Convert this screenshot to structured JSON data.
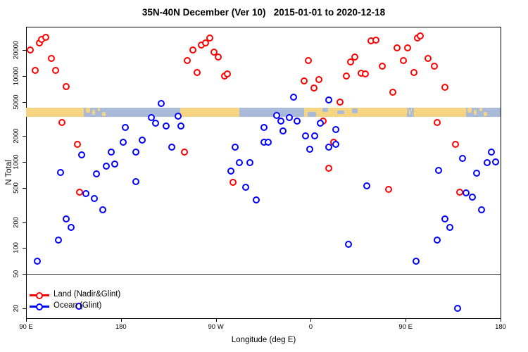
{
  "chart_data": {
    "type": "scatter",
    "title": "35N-40N December (Ver 10)   2015-01-01 to 2020-12-18",
    "xlabel": "Longitude (deg E)",
    "ylabel": "N Total",
    "y_scale": "log",
    "xlim": [
      90,
      540
    ],
    "ylim": [
      15,
      37000
    ],
    "grid": false,
    "legend_position": "bottom-left",
    "x_ticks": [
      {
        "value": 90,
        "label": "90 E"
      },
      {
        "value": 180,
        "label": "180"
      },
      {
        "value": 270,
        "label": "90 W"
      },
      {
        "value": 360,
        "label": "0"
      },
      {
        "value": 450,
        "label": "90 E"
      },
      {
        "value": 540,
        "label": "180"
      }
    ],
    "y_ticks": [
      {
        "value": 20,
        "label": "20"
      },
      {
        "value": 50,
        "label": "50"
      },
      {
        "value": 100,
        "label": "100"
      },
      {
        "value": 200,
        "label": "200"
      },
      {
        "value": 500,
        "label": "500"
      },
      {
        "value": 1000,
        "label": "1000"
      },
      {
        "value": 2000,
        "label": "2000"
      },
      {
        "value": 5000,
        "label": "5000"
      },
      {
        "value": 10000,
        "label": "10000"
      },
      {
        "value": 20000,
        "label": "20000"
      }
    ],
    "threshold_line_value": 50,
    "map_band": {
      "description": "land/ocean strip along the 35N-40N latitude band",
      "top_value": 4300,
      "bottom_value": 3350,
      "land_color": "#F5D483",
      "ocean_color": "#A9BBD8",
      "segments": [
        {
          "from": 90,
          "to": 145,
          "surface": "land"
        },
        {
          "from": 145,
          "to": 167,
          "surface": "coast"
        },
        {
          "from": 167,
          "to": 236,
          "surface": "ocean"
        },
        {
          "from": 236,
          "to": 292,
          "surface": "land"
        },
        {
          "from": 292,
          "to": 354,
          "surface": "ocean"
        },
        {
          "from": 354,
          "to": 410,
          "surface": "coast-land"
        },
        {
          "from": 410,
          "to": 451,
          "surface": "land"
        },
        {
          "from": 451,
          "to": 458,
          "surface": "coast"
        },
        {
          "from": 458,
          "to": 507,
          "surface": "land"
        },
        {
          "from": 507,
          "to": 529,
          "surface": "coast"
        },
        {
          "from": 529,
          "to": 540,
          "surface": "ocean"
        }
      ]
    },
    "series": [
      {
        "name": "Land (Nadir&Glint)",
        "color": "#FF0000",
        "points": [
          [
            94,
            20000
          ],
          [
            103,
            24000
          ],
          [
            105,
            26500
          ],
          [
            109,
            28000
          ],
          [
            114,
            16000
          ],
          [
            99,
            11600
          ],
          [
            118,
            11600
          ],
          [
            128,
            7500
          ],
          [
            124,
            2900
          ],
          [
            139,
            1600
          ],
          [
            141,
            450
          ],
          [
            240,
            1300
          ],
          [
            243,
            15000
          ],
          [
            248,
            20000
          ],
          [
            252,
            11000
          ],
          [
            256,
            23000
          ],
          [
            260,
            24000
          ],
          [
            264,
            27500
          ],
          [
            268,
            19000
          ],
          [
            272,
            16500
          ],
          [
            278,
            10000
          ],
          [
            281,
            10500
          ],
          [
            286,
            580
          ],
          [
            354,
            8700
          ],
          [
            358,
            15000
          ],
          [
            363,
            7200
          ],
          [
            368,
            9000
          ],
          [
            372,
            3000
          ],
          [
            377,
            850
          ],
          [
            382,
            1700
          ],
          [
            388,
            5000
          ],
          [
            394,
            10000
          ],
          [
            398,
            14500
          ],
          [
            402,
            16500
          ],
          [
            408,
            10700
          ],
          [
            412,
            10500
          ],
          [
            417,
            25500
          ],
          [
            422,
            26000
          ],
          [
            428,
            13000
          ],
          [
            434,
            480
          ],
          [
            438,
            6500
          ],
          [
            442,
            21000
          ],
          [
            448,
            15000
          ],
          [
            452,
            21000
          ],
          [
            458,
            11000
          ],
          [
            461,
            27500
          ],
          [
            464,
            29000
          ],
          [
            471,
            16000
          ],
          [
            477,
            13000
          ],
          [
            480,
            2900
          ],
          [
            487,
            7400
          ],
          [
            497,
            1600
          ],
          [
            501,
            450
          ]
        ]
      },
      {
        "name": "Ocean (Glint)",
        "color": "#0000FF",
        "points": [
          [
            101,
            70
          ],
          [
            121,
            125
          ],
          [
            123,
            760
          ],
          [
            128,
            220
          ],
          [
            133,
            175
          ],
          [
            143,
            1200
          ],
          [
            147,
            430
          ],
          [
            155,
            380
          ],
          [
            157,
            730
          ],
          [
            163,
            280
          ],
          [
            166,
            900
          ],
          [
            171,
            1300
          ],
          [
            174,
            950
          ],
          [
            182,
            1700
          ],
          [
            184,
            2500
          ],
          [
            194,
            1300
          ],
          [
            194,
            590
          ],
          [
            200,
            1800
          ],
          [
            209,
            3300
          ],
          [
            213,
            2800
          ],
          [
            218,
            4800
          ],
          [
            223,
            2600
          ],
          [
            228,
            1500
          ],
          [
            234,
            3400
          ],
          [
            237,
            2600
          ],
          [
            284,
            790
          ],
          [
            288,
            1500
          ],
          [
            292,
            980
          ],
          [
            298,
            510
          ],
          [
            302,
            980
          ],
          [
            308,
            360
          ],
          [
            316,
            2500
          ],
          [
            316,
            1700
          ],
          [
            320,
            1700
          ],
          [
            328,
            3500
          ],
          [
            332,
            3000
          ],
          [
            334,
            2300
          ],
          [
            340,
            3300
          ],
          [
            344,
            5700
          ],
          [
            347,
            3000
          ],
          [
            355,
            2000
          ],
          [
            359,
            1400
          ],
          [
            364,
            2000
          ],
          [
            369,
            2800
          ],
          [
            377,
            5300
          ],
          [
            377,
            1500
          ],
          [
            384,
            2400
          ],
          [
            384,
            1600
          ],
          [
            396,
            110
          ],
          [
            413,
            530
          ],
          [
            460,
            70
          ],
          [
            480,
            125
          ],
          [
            481,
            800
          ],
          [
            487,
            220
          ],
          [
            492,
            175
          ],
          [
            499,
            20
          ],
          [
            504,
            1100
          ],
          [
            507,
            440
          ],
          [
            513,
            390
          ],
          [
            517,
            740
          ],
          [
            522,
            280
          ],
          [
            527,
            980
          ],
          [
            531,
            1300
          ],
          [
            535,
            1000
          ],
          [
            140,
            21
          ]
        ]
      }
    ],
    "legend": [
      {
        "label": "Land (Nadir&Glint)",
        "color": "#FF0000"
      },
      {
        "label": "Ocean (Glint)",
        "color": "#0000FF"
      }
    ]
  }
}
